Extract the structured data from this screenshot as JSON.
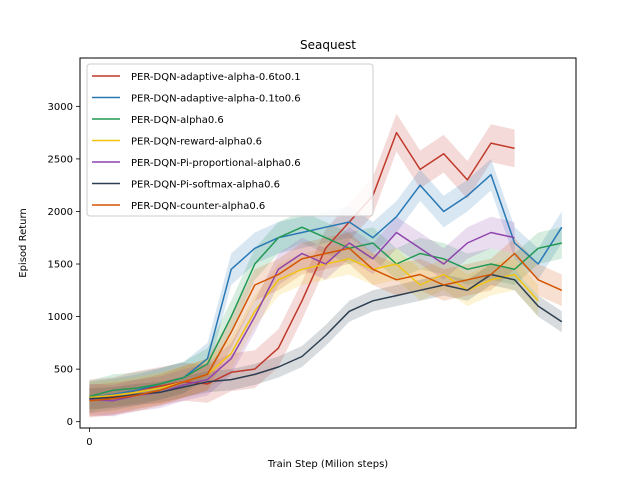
{
  "chart_data": {
    "type": "line",
    "title": "Seaquest",
    "xlabel": "Train Step (Milion steps)",
    "ylabel": "Episod Return",
    "x_ticks": [
      0
    ],
    "y_ticks": [
      0,
      500,
      1000,
      1500,
      2000,
      2500,
      3000
    ],
    "xlim": [
      -0.02,
      1.03
    ],
    "ylim": [
      -60,
      3460
    ],
    "grid": false,
    "legend_position": "upper-left",
    "x": [
      0,
      0.05,
      0.1,
      0.15,
      0.2,
      0.25,
      0.3,
      0.35,
      0.4,
      0.45,
      0.5,
      0.55,
      0.6,
      0.65,
      0.7,
      0.75,
      0.8,
      0.85,
      0.9,
      0.95,
      1.0
    ],
    "series": [
      {
        "name": "PER-DQN-adaptive-alpha-0.6to0.1",
        "color": "#c0392b",
        "band": 180,
        "values": [
          220,
          240,
          300,
          340,
          380,
          360,
          470,
          500,
          700,
          1150,
          1650,
          1900,
          2150,
          2750,
          2400,
          2550,
          2300,
          2650,
          2600,
          null,
          null
        ]
      },
      {
        "name": "PER-DQN-adaptive-alpha-0.1to0.6",
        "color": "#2878b5",
        "band": 150,
        "values": [
          230,
          260,
          300,
          360,
          420,
          600,
          1450,
          1650,
          1750,
          1800,
          1850,
          1900,
          1750,
          1950,
          2250,
          2000,
          2150,
          2350,
          1700,
          1500,
          1850
        ]
      },
      {
        "name": "PER-DQN-alpha0.6",
        "color": "#229954",
        "band": 150,
        "values": [
          240,
          300,
          320,
          360,
          420,
          550,
          1000,
          1500,
          1750,
          1850,
          1750,
          1650,
          1700,
          1500,
          1600,
          1550,
          1450,
          1500,
          1450,
          1650,
          1700
        ]
      },
      {
        "name": "PER-DQN-reward-alpha0.6",
        "color": "#f1c40f",
        "band": 150,
        "values": [
          230,
          250,
          280,
          320,
          380,
          450,
          650,
          1050,
          1350,
          1450,
          1500,
          1550,
          1450,
          1500,
          1300,
          1400,
          1250,
          1350,
          1400,
          1150,
          null
        ]
      },
      {
        "name": "PER-DQN-Pi-proportional-alpha0.6",
        "color": "#8e44ad",
        "band": 150,
        "values": [
          210,
          200,
          250,
          280,
          350,
          400,
          600,
          1000,
          1450,
          1600,
          1500,
          1700,
          1550,
          1800,
          1650,
          1500,
          1700,
          1800,
          1750,
          null,
          null
        ]
      },
      {
        "name": "PER-DQN-Pi-softmax-alpha0.6",
        "color": "#2c3e50",
        "band": 100,
        "values": [
          220,
          230,
          260,
          280,
          330,
          380,
          400,
          450,
          520,
          620,
          820,
          1050,
          1150,
          1200,
          1250,
          1300,
          1250,
          1400,
          1350,
          1100,
          950
        ]
      },
      {
        "name": "PER-DQN-counter-alpha0.6",
        "color": "#d35400",
        "band": 150,
        "values": [
          200,
          220,
          250,
          300,
          380,
          450,
          850,
          1300,
          1400,
          1550,
          1600,
          1650,
          1450,
          1350,
          1400,
          1300,
          1350,
          1400,
          1600,
          1350,
          1250
        ]
      }
    ]
  }
}
